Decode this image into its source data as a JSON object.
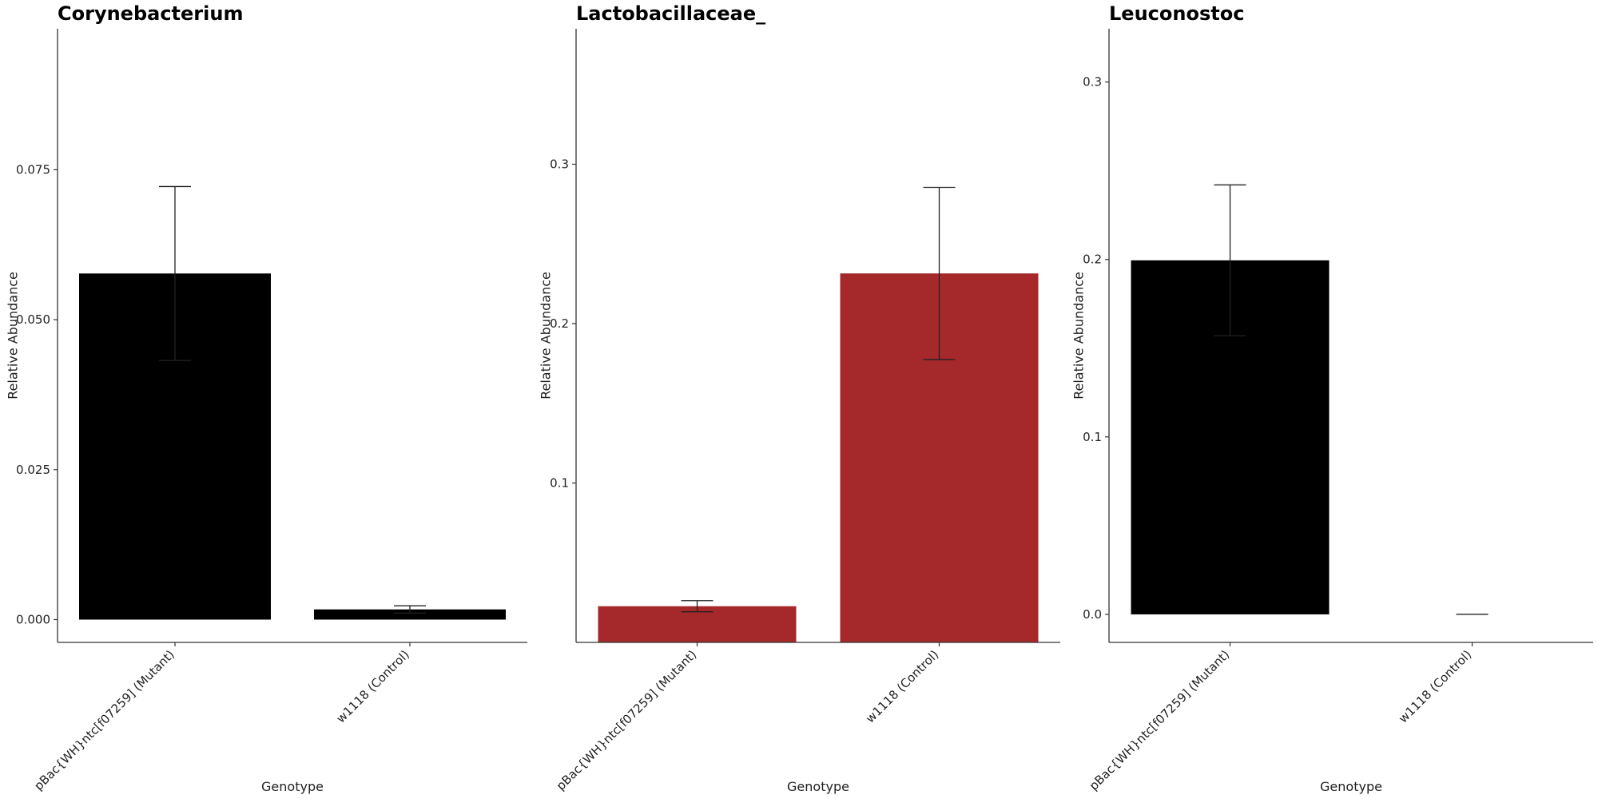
{
  "chart_data": [
    {
      "type": "bar",
      "title": "Corynebacterium",
      "xlabel": "Genotype",
      "ylabel": "Relative Abundance",
      "categories": [
        "pBac{WH}ntc[f07259] (Mutant)",
        "w1118 (Control)"
      ],
      "values": [
        0.0577,
        0.0017
      ],
      "errors": [
        0.0145,
        0.0006
      ],
      "bar_color": "#000000",
      "ylim": [
        -0.0038,
        0.0985
      ],
      "yticks": [
        0.0,
        0.025,
        0.05,
        0.075
      ],
      "ytick_labels": [
        "0.000",
        "0.025",
        "0.050",
        "0.075"
      ],
      "grid": false
    },
    {
      "type": "bar",
      "title": "Lactobacillaceae_",
      "xlabel": "Genotype",
      "ylabel": "Relative Abundance",
      "categories": [
        "pBac{WH}ntc[f07259] (Mutant)",
        "w1118 (Control)"
      ],
      "values": [
        0.0227,
        0.2315
      ],
      "errors": [
        0.0035,
        0.054
      ],
      "bar_color": "#a5292a",
      "ylim": [
        0.0,
        0.385
      ],
      "yticks": [
        0.1,
        0.2,
        0.3
      ],
      "ytick_labels": [
        "0.1",
        "0.2",
        "0.3"
      ],
      "grid": false
    },
    {
      "type": "bar",
      "title": "Leuconostoc",
      "xlabel": "Genotype",
      "ylabel": "Relative Abundance",
      "categories": [
        "pBac{WH}ntc[f07259] (Mutant)",
        "w1118 (Control)"
      ],
      "values": [
        0.1995,
        0.0
      ],
      "errors": [
        0.0425,
        0.0
      ],
      "bar_color": "#000000",
      "ylim": [
        -0.0158,
        0.33
      ],
      "yticks": [
        0.0,
        0.1,
        0.2,
        0.3
      ],
      "ytick_labels": [
        "0.0",
        "0.1",
        "0.2",
        "0.3"
      ],
      "grid": false
    }
  ]
}
